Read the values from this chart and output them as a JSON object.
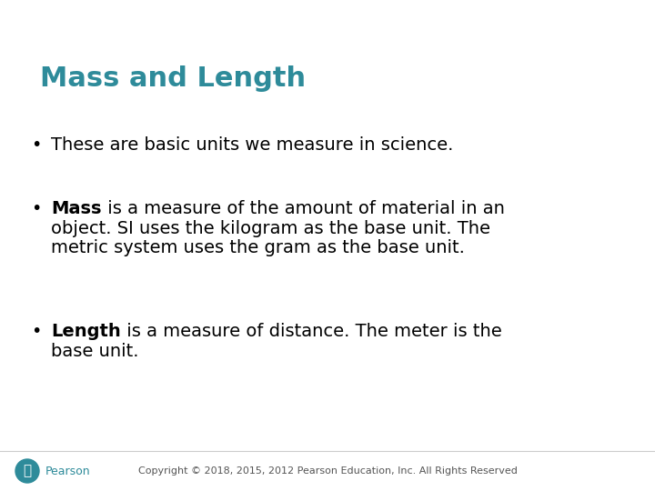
{
  "title": "Mass and Length",
  "title_color": "#2E8B9A",
  "background_color": "#FFFFFF",
  "bullet1": "These are basic units we measure in science.",
  "bullet2_bold": "Mass",
  "bullet2_rest": " is a measure of the amount of material in an object. SI uses the kilogram as the base unit. The metric system uses the gram as the base unit.",
  "bullet3_bold": "Length",
  "bullet3_rest": " is a measure of distance. The meter is the base unit.",
  "footer": "Copyright © 2018, 2015, 2012 Pearson Education, Inc. All Rights Reserved",
  "footer_color": "#555555",
  "pearson_color": "#2E8B9A",
  "body_color": "#000000",
  "title_fontsize": 22,
  "body_fontsize": 14,
  "footer_fontsize": 8,
  "pearson_label_fontsize": 9
}
